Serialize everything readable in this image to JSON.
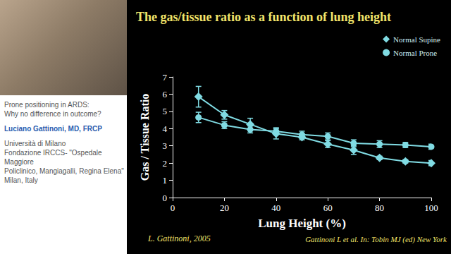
{
  "chart_data": {
    "type": "line",
    "title": "The gas/tissue ratio as a function of lung height",
    "x_label": "Lung Height (%)",
    "y_label": "Gas / Tissue Ratio",
    "x": [
      10,
      20,
      30,
      40,
      50,
      60,
      70,
      80,
      90,
      100
    ],
    "series": [
      {
        "name": "Normal Supine",
        "color": "#80dbe3",
        "marker": "diamond",
        "line_style": "solid",
        "values": [
          5.85,
          4.8,
          4.25,
          3.7,
          3.5,
          3.1,
          2.75,
          2.3,
          2.1,
          2.0
        ],
        "errors": [
          0.6,
          0.25,
          0.35,
          0.3,
          0.15,
          0.2,
          0.25,
          0.1,
          0.1,
          0.15
        ]
      },
      {
        "name": "Normal Prone",
        "color": "#80dbe3",
        "marker": "circle",
        "line_style": "solid",
        "values": [
          4.65,
          4.2,
          3.95,
          3.85,
          3.65,
          3.55,
          3.15,
          3.1,
          3.05,
          2.95
        ],
        "errors": [
          0.3,
          0.2,
          0.2,
          0.2,
          0.2,
          0.2,
          0.2,
          0.2,
          0.15,
          0.15
        ]
      }
    ],
    "xlim": [
      0,
      100
    ],
    "xticks": [
      0,
      20,
      40,
      60,
      80,
      100
    ],
    "ylim": [
      0,
      7
    ],
    "yticks": [
      0,
      1,
      2,
      3,
      4,
      5,
      6,
      7
    ],
    "grid": false,
    "legend": "top-right",
    "annotations": [
      "L. Gattinoni, 2005",
      "Gattinoni L et al. In: Tobin MJ (ed) New York"
    ]
  },
  "sidebar": {
    "talk_title": [
      "Prone positioning in ARDS:",
      "Why no difference in outcome?"
    ],
    "speaker": "Luciano Gattinoni, MD, FRCP",
    "affiliation": [
      "Università di Milano",
      "Fondazione IRCCS- \"Ospedale Maggiore",
      "Policlinico, Mangiagalli, Regina Elena\"",
      "Milan, Italy"
    ]
  }
}
